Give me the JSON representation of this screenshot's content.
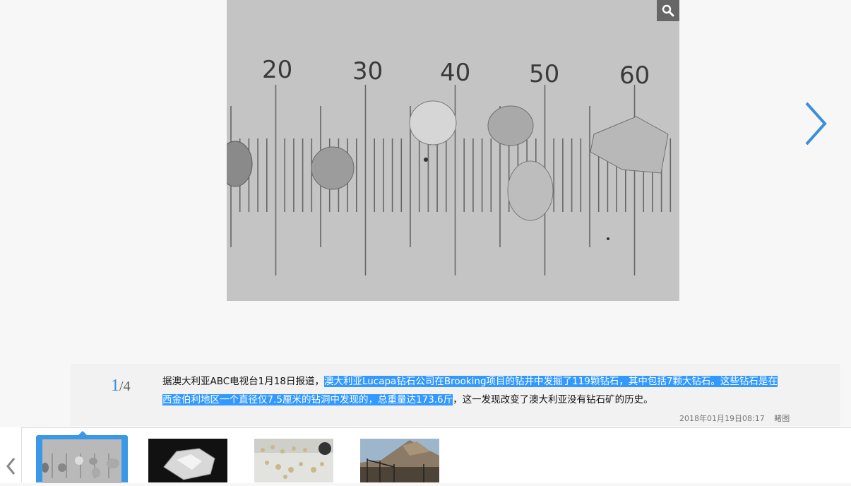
{
  "gallery": {
    "main_image_icon": "ruler-with-diamonds-photo",
    "zoom_icon": "search-icon",
    "next_icon": "chevron-right-icon",
    "prev_icon": "chevron-left-icon",
    "ruler_labels": [
      "20",
      "30",
      "40",
      "50",
      "60"
    ]
  },
  "counter": {
    "current": "1",
    "separator": "/",
    "total": "4"
  },
  "caption": {
    "text_before": "据澳大利亚ABC电视台1月18日报道，",
    "text_highlighted": "澳大利亚Lucapa钻石公司在Brooking项目的钻井中发掘了119颗钻石，其中包括7颗大钻石。这些钻石是在西金伯利地区一个直径仅7.5厘米的钻洞中发现的，总重量达173.6斤",
    "text_after": "，这一发现改变了澳大利亚没有钻石矿的历史。"
  },
  "meta": {
    "datetime": "2018年01月19日08:17",
    "source": "睹图"
  },
  "thumbnails": [
    {
      "icon": "ruler-diamonds-thumbnail"
    },
    {
      "icon": "rough-diamond-thumbnail"
    },
    {
      "icon": "diamonds-on-tray-thumbnail"
    },
    {
      "icon": "mine-site-thumbnail"
    }
  ],
  "colors": {
    "accent": "#3a98e6",
    "highlight": "#3399ff"
  }
}
